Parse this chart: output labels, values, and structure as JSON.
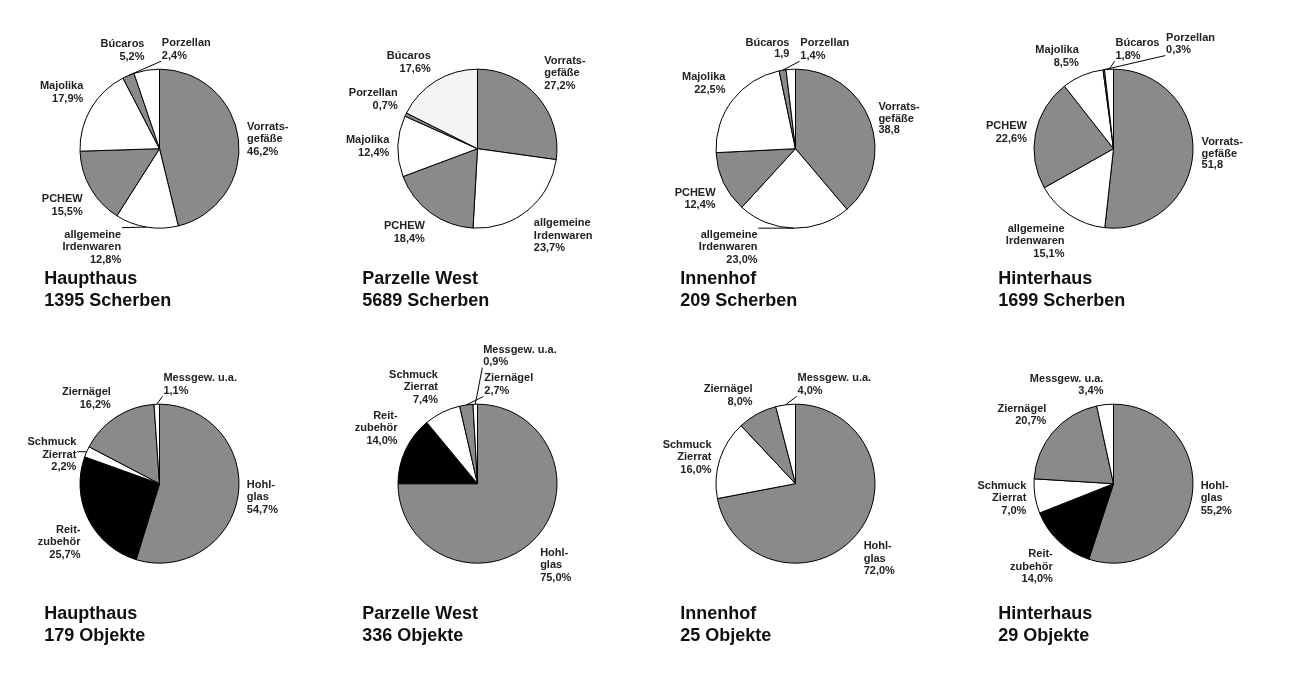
{
  "chart_data": [
    {
      "type": "pie",
      "title": "Haupthaus",
      "subtitle": "1395 Scherben",
      "categories": [
        "Vorrats-\ngefäße",
        "allgemeine\nIrdenwaren",
        "PCHEW",
        "Majolika",
        "Porzellan",
        "Búcaros"
      ],
      "values": [
        46.2,
        12.8,
        15.5,
        17.9,
        2.4,
        5.2
      ],
      "value_labels": [
        "46,2%",
        "12,8%",
        "15,5%",
        "17,9%",
        "2,4%",
        "5,2%"
      ],
      "colors": [
        "#8a8a8a",
        "#ffffff",
        "#8a8a8a",
        "#ffffff",
        "#8a8a8a",
        "#ffffff"
      ]
    },
    {
      "type": "pie",
      "title": "Parzelle West",
      "subtitle": "5689 Scherben",
      "categories": [
        "Vorrats-\ngefäße",
        "allgemeine\nIrdenwaren",
        "PCHEW",
        "Majolika",
        "Porzellan",
        "Búcaros"
      ],
      "values": [
        27.2,
        23.7,
        18.4,
        12.4,
        0.7,
        17.6
      ],
      "value_labels": [
        "27,2%",
        "23,7%",
        "18,4%",
        "12,4%",
        "0,7%",
        "17,6%"
      ],
      "colors": [
        "#8a8a8a",
        "#ffffff",
        "#8a8a8a",
        "#ffffff",
        "#8a8a8a",
        "#f4f4f4"
      ]
    },
    {
      "type": "pie",
      "title": "Innenhof",
      "subtitle": "209 Scherben",
      "categories": [
        "Vorrats-\ngefäße",
        "allgemeine\nIrdenwaren",
        "PCHEW",
        "Majolika",
        "Porzellan",
        "Búcaros"
      ],
      "values": [
        38.8,
        23.0,
        12.4,
        22.5,
        1.4,
        1.9
      ],
      "value_labels": [
        "38,8",
        "23,0%",
        "12,4%",
        "22,5%",
        "1,4%",
        "1,9"
      ],
      "colors": [
        "#8a8a8a",
        "#ffffff",
        "#8a8a8a",
        "#ffffff",
        "#8a8a8a",
        "#ffffff"
      ]
    },
    {
      "type": "pie",
      "title": "Hinterhaus",
      "subtitle": "1699 Scherben",
      "categories": [
        "Vorrats-\ngefäße",
        "allgemeine\nIrdenwaren",
        "PCHEW",
        "Majolika",
        "Porzellan",
        "Búcaros"
      ],
      "values": [
        51.8,
        15.1,
        22.6,
        8.5,
        0.3,
        1.8
      ],
      "value_labels": [
        "51,8",
        "15,1%",
        "22,6%",
        "8,5%",
        "0,3%",
        "1,8%"
      ],
      "colors": [
        "#8a8a8a",
        "#ffffff",
        "#8a8a8a",
        "#ffffff",
        "#8a8a8a",
        "#ffffff"
      ]
    },
    {
      "type": "pie",
      "title": "Haupthaus",
      "subtitle": "179 Objekte",
      "categories": [
        "Hohl-\nglas",
        "Reit-\nzubehör",
        "Schmuck\nZierrat",
        "Ziernägel",
        "Messgew. u.a."
      ],
      "values": [
        54.7,
        25.7,
        2.2,
        16.2,
        1.1
      ],
      "value_labels": [
        "54,7%",
        "25,7%",
        "2,2%",
        "16,2%",
        "1,1%"
      ],
      "colors": [
        "#8a8a8a",
        "#000000",
        "#ffffff",
        "#8a8a8a",
        "#ffffff"
      ]
    },
    {
      "type": "pie",
      "title": "Parzelle West",
      "subtitle": "336 Objekte",
      "categories": [
        "Hohl-\nglas",
        "Reit-\nzubehör",
        "Schmuck\nZierrat",
        "Ziernägel",
        "Messgew. u.a."
      ],
      "values": [
        75.0,
        14.0,
        7.4,
        2.7,
        0.9
      ],
      "value_labels": [
        "75,0%",
        "14,0%",
        "7,4%",
        "2,7%",
        "0,9%"
      ],
      "colors": [
        "#8a8a8a",
        "#000000",
        "#ffffff",
        "#8a8a8a",
        "#ffffff"
      ]
    },
    {
      "type": "pie",
      "title": "Innenhof",
      "subtitle": "25 Objekte",
      "categories": [
        "Hohl-\nglas",
        "Schmuck\nZierrat",
        "Ziernägel",
        "Messgew. u.a."
      ],
      "values": [
        72.0,
        16.0,
        8.0,
        4.0
      ],
      "value_labels": [
        "72,0%",
        "16,0%",
        "8,0%",
        "4,0%"
      ],
      "colors": [
        "#8a8a8a",
        "#ffffff",
        "#8a8a8a",
        "#ffffff"
      ]
    },
    {
      "type": "pie",
      "title": "Hinterhaus",
      "subtitle": "29 Objekte",
      "categories": [
        "Hohl-\nglas",
        "Reit-\nzubehör",
        "Schmuck\nZierrat",
        "Ziernägel",
        "Messgew. u.a."
      ],
      "values": [
        55.2,
        14.0,
        7.0,
        20.7,
        3.4
      ],
      "value_labels": [
        "55,2%",
        "14,0%",
        "7,0%",
        "20,7%",
        "3,4%"
      ],
      "colors": [
        "#8a8a8a",
        "#000000",
        "#ffffff",
        "#8a8a8a",
        "#ffffff"
      ]
    }
  ]
}
